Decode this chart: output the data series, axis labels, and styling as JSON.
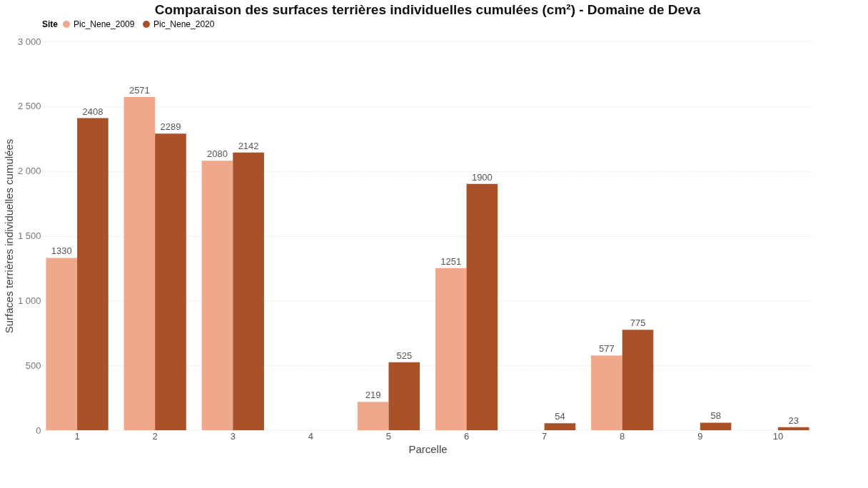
{
  "chart_data": {
    "type": "bar",
    "title": "Comparaison des surfaces terrières individuelles cumulées (cm²) - Domaine de Deva",
    "xlabel": "Parcelle",
    "ylabel": "Surfaces terrières individuelles cumulées",
    "legend_title": "Site",
    "legend": "top",
    "categories": [
      "1",
      "2",
      "3",
      "4",
      "5",
      "6",
      "7",
      "8",
      "9",
      "10"
    ],
    "series": [
      {
        "name": "Pic_Nene_2009",
        "color": "#f0a88a",
        "values": [
          1330,
          2571,
          2080,
          null,
          219,
          1251,
          null,
          577,
          null,
          null
        ]
      },
      {
        "name": "Pic_Nene_2020",
        "color": "#a9522a",
        "values": [
          2408,
          2289,
          2142,
          null,
          525,
          1900,
          54,
          775,
          58,
          23
        ]
      }
    ],
    "ylim": [
      0,
      3000
    ],
    "yticks": [
      {
        "value": 0,
        "label": "0"
      },
      {
        "value": 500,
        "label": "500"
      },
      {
        "value": 1000,
        "label": "1 000"
      },
      {
        "value": 1500,
        "label": "1 500"
      },
      {
        "value": 2000,
        "label": "2 000"
      },
      {
        "value": 2500,
        "label": "2 500"
      },
      {
        "value": 3000,
        "label": "3 000"
      }
    ],
    "grid": "y",
    "data_labels": true
  }
}
